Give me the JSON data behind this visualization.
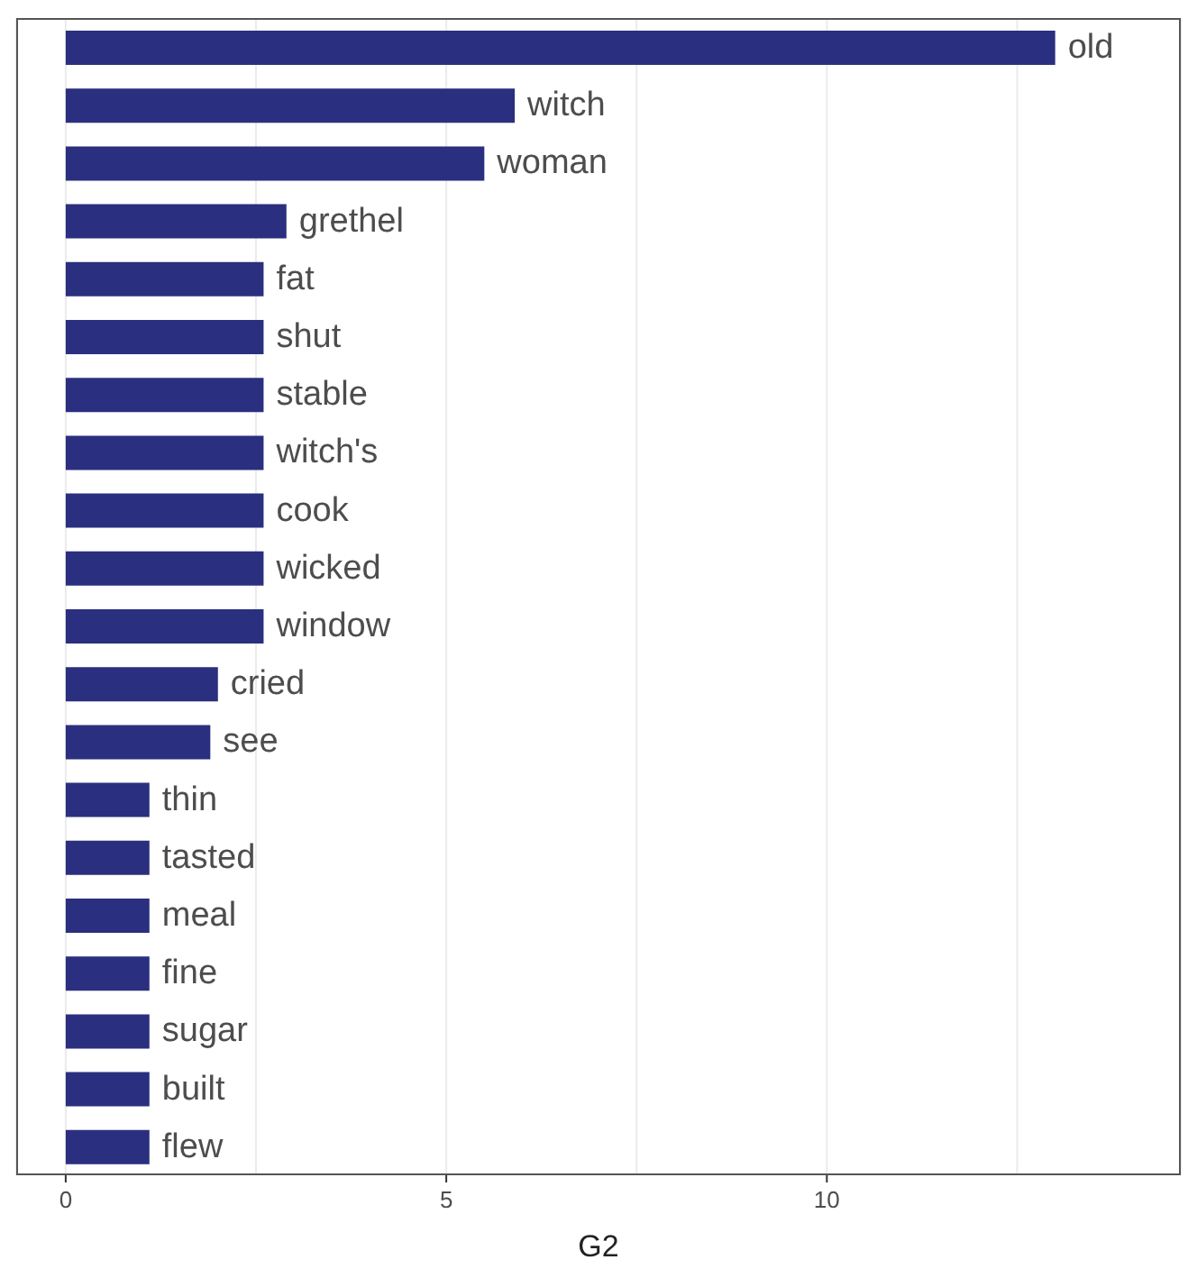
{
  "chart_data": {
    "type": "bar",
    "orientation": "horizontal",
    "xlabel": "G2",
    "categories": [
      "old",
      "witch",
      "woman",
      "grethel",
      "fat",
      "shut",
      "stable",
      "witch's",
      "cook",
      "wicked",
      "window",
      "cried",
      "see",
      "thin",
      "tasted",
      "meal",
      "fine",
      "sugar",
      "built",
      "flew"
    ],
    "values": [
      13.0,
      5.9,
      5.5,
      2.9,
      2.6,
      2.6,
      2.6,
      2.6,
      2.6,
      2.6,
      2.6,
      2.0,
      1.9,
      1.1,
      1.1,
      1.1,
      1.1,
      1.1,
      1.1,
      1.1
    ],
    "color": "#2a2f7f",
    "xlim": [
      -0.65,
      14.65
    ],
    "xticks": [
      0,
      {
        "value": 2.5,
        "label": null
      },
      5,
      {
        "value": 7.5,
        "label": null
      },
      10,
      {
        "value": 12.5,
        "label": null
      }
    ],
    "grid": "x",
    "tick_labels": "x"
  }
}
